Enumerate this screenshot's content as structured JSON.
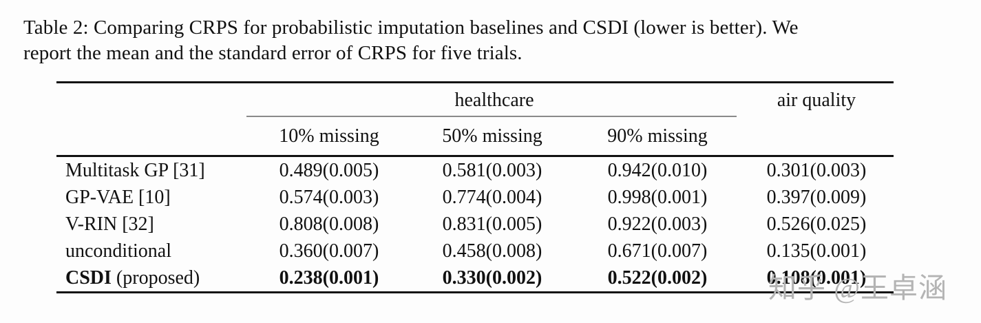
{
  "caption": {
    "line1": "Table 2: Comparing CRPS for probabilistic imputation baselines and CSDI (lower is better). We",
    "line2": "report the mean and the standard error of CRPS for five trials."
  },
  "table": {
    "group_headers": {
      "healthcare": "healthcare",
      "air_quality": "air quality"
    },
    "sub_headers": [
      "10% missing",
      "50% missing",
      "90% missing"
    ],
    "rows": [
      {
        "label": "Multitask GP [31]",
        "values": [
          "0.489(0.005)",
          "0.581(0.003)",
          "0.942(0.010)",
          "0.301(0.003)"
        ]
      },
      {
        "label": "GP-VAE [10]",
        "values": [
          "0.574(0.003)",
          "0.774(0.004)",
          "0.998(0.001)",
          "0.397(0.009)"
        ]
      },
      {
        "label": "V-RIN [32]",
        "values": [
          "0.808(0.008)",
          "0.831(0.005)",
          "0.922(0.003)",
          "0.526(0.025)"
        ]
      },
      {
        "label": "unconditional",
        "values": [
          "0.360(0.007)",
          "0.458(0.008)",
          "0.671(0.007)",
          "0.135(0.001)"
        ]
      },
      {
        "label_bold": "CSDI",
        "label_rest": " (proposed)",
        "values": [
          "0.238(0.001)",
          "0.330(0.002)",
          "0.522(0.002)",
          "0.108(0.001)"
        ]
      }
    ]
  },
  "watermark": {
    "text": "知乎 @王卓涵",
    "color": "#b4b4b4"
  },
  "colors": {
    "text": "#111111",
    "rule": "#111111",
    "cmidrule": "#8a8a8a",
    "background": "#fdfdfd",
    "watermark": "#b4b4b4"
  }
}
